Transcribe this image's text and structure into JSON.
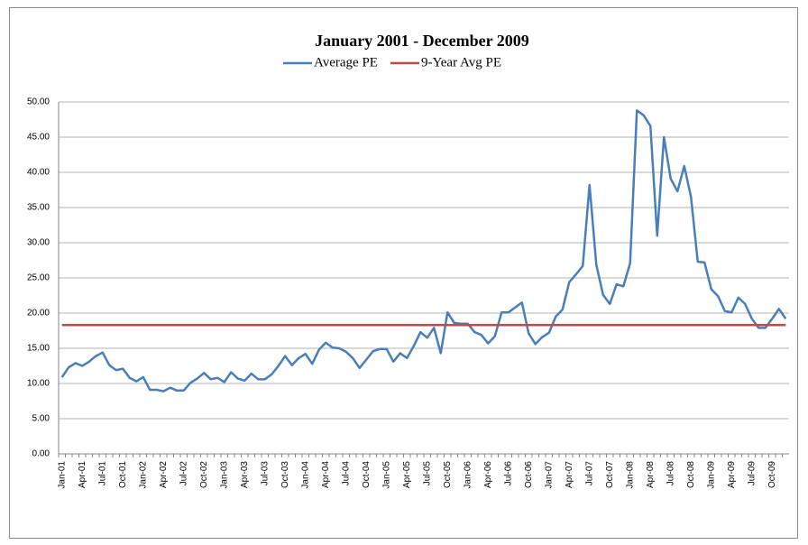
{
  "chart_data": {
    "type": "line",
    "title": "January 2001 - December 2009",
    "categories": [
      "Jan-01",
      null,
      null,
      "Apr-01",
      null,
      null,
      "Jul-01",
      null,
      null,
      "Oct-01",
      null,
      null,
      "Jan-02",
      null,
      null,
      "Apr-02",
      null,
      null,
      "Jul-02",
      null,
      null,
      "Oct-02",
      null,
      null,
      "Jan-03",
      null,
      null,
      "Apr-03",
      null,
      null,
      "Jul-03",
      null,
      null,
      "Oct-03",
      null,
      null,
      "Jan-04",
      null,
      null,
      "Apr-04",
      null,
      null,
      "Jul-04",
      null,
      null,
      "Oct-04",
      null,
      null,
      "Jan-05",
      null,
      null,
      "Apr-05",
      null,
      null,
      "Jul-05",
      null,
      null,
      "Oct-05",
      null,
      null,
      "Jan-06",
      null,
      null,
      "Apr-06",
      null,
      null,
      "Jul-06",
      null,
      null,
      "Oct-06",
      null,
      null,
      "Jan-07",
      null,
      null,
      "Apr-07",
      null,
      null,
      "Jul-07",
      null,
      null,
      "Oct-07",
      null,
      null,
      "Jan-08",
      null,
      null,
      "Apr-08",
      null,
      null,
      "Jul-08",
      null,
      null,
      "Oct-08",
      null,
      null,
      "Jan-09",
      null,
      null,
      "Apr-09",
      null,
      null,
      "Jul-09",
      null,
      null,
      "Oct-09",
      null,
      null
    ],
    "series": [
      {
        "name": "Average PE",
        "color": "#4a7ebb",
        "values": [
          10.9,
          12.3,
          12.9,
          12.5,
          13.1,
          13.9,
          14.4,
          12.6,
          11.9,
          12.1,
          10.8,
          10.3,
          10.9,
          9.1,
          9.1,
          8.9,
          9.4,
          9.0,
          9.0,
          10.1,
          10.7,
          11.5,
          10.6,
          10.8,
          10.2,
          11.6,
          10.7,
          10.4,
          11.4,
          10.6,
          10.6,
          11.3,
          12.5,
          13.9,
          12.6,
          13.6,
          14.2,
          12.8,
          14.8,
          15.8,
          15.1,
          15.0,
          14.5,
          13.6,
          12.2,
          13.4,
          14.6,
          14.9,
          14.9,
          13.1,
          14.3,
          13.6,
          15.3,
          17.3,
          16.5,
          17.9,
          14.3,
          20.1,
          18.6,
          18.5,
          18.5,
          17.3,
          16.9,
          15.7,
          16.7,
          20.1,
          20.1,
          20.8,
          21.5,
          17.1,
          15.6,
          16.6,
          17.2,
          19.5,
          20.5,
          24.4,
          25.5,
          26.7,
          38.2,
          26.9,
          22.6,
          21.3,
          24.1,
          23.8,
          27.1,
          48.8,
          48.1,
          46.6,
          31.0,
          45.0,
          39.1,
          37.3,
          40.9,
          36.5,
          27.3,
          27.2,
          23.4,
          22.4,
          20.3,
          20.1,
          22.2,
          21.3,
          19.2,
          17.9,
          17.9,
          19.2,
          20.6,
          19.2
        ]
      },
      {
        "name": "9-Year Avg PE",
        "color": "#be4b48",
        "values": [
          18.3,
          18.3,
          18.3,
          18.3,
          18.3,
          18.3,
          18.3,
          18.3,
          18.3,
          18.3,
          18.3,
          18.3,
          18.3,
          18.3,
          18.3,
          18.3,
          18.3,
          18.3,
          18.3,
          18.3,
          18.3,
          18.3,
          18.3,
          18.3,
          18.3,
          18.3,
          18.3,
          18.3,
          18.3,
          18.3,
          18.3,
          18.3,
          18.3,
          18.3,
          18.3,
          18.3,
          18.3,
          18.3,
          18.3,
          18.3,
          18.3,
          18.3,
          18.3,
          18.3,
          18.3,
          18.3,
          18.3,
          18.3,
          18.3,
          18.3,
          18.3,
          18.3,
          18.3,
          18.3,
          18.3,
          18.3,
          18.3,
          18.3,
          18.3,
          18.3,
          18.3,
          18.3,
          18.3,
          18.3,
          18.3,
          18.3,
          18.3,
          18.3,
          18.3,
          18.3,
          18.3,
          18.3,
          18.3,
          18.3,
          18.3,
          18.3,
          18.3,
          18.3,
          18.3,
          18.3,
          18.3,
          18.3,
          18.3,
          18.3,
          18.3,
          18.3,
          18.3,
          18.3,
          18.3,
          18.3,
          18.3,
          18.3,
          18.3,
          18.3,
          18.3,
          18.3,
          18.3,
          18.3,
          18.3,
          18.3,
          18.3,
          18.3,
          18.3,
          18.3,
          18.3,
          18.3,
          18.3,
          18.3
        ]
      }
    ],
    "ylim": [
      0,
      50
    ],
    "yticks": [
      {
        "value": 0,
        "label": "0.00"
      },
      {
        "value": 5,
        "label": "5.00"
      },
      {
        "value": 10,
        "label": "10.00"
      },
      {
        "value": 15,
        "label": "15.00"
      },
      {
        "value": 20,
        "label": "20.00"
      },
      {
        "value": 25,
        "label": "25.00"
      },
      {
        "value": 30,
        "label": "30.00"
      },
      {
        "value": 35,
        "label": "35.00"
      },
      {
        "value": 40,
        "label": "40.00"
      },
      {
        "value": 45,
        "label": "45.00"
      },
      {
        "value": 50,
        "label": "50.00"
      }
    ],
    "grid": true,
    "legend": "top"
  }
}
